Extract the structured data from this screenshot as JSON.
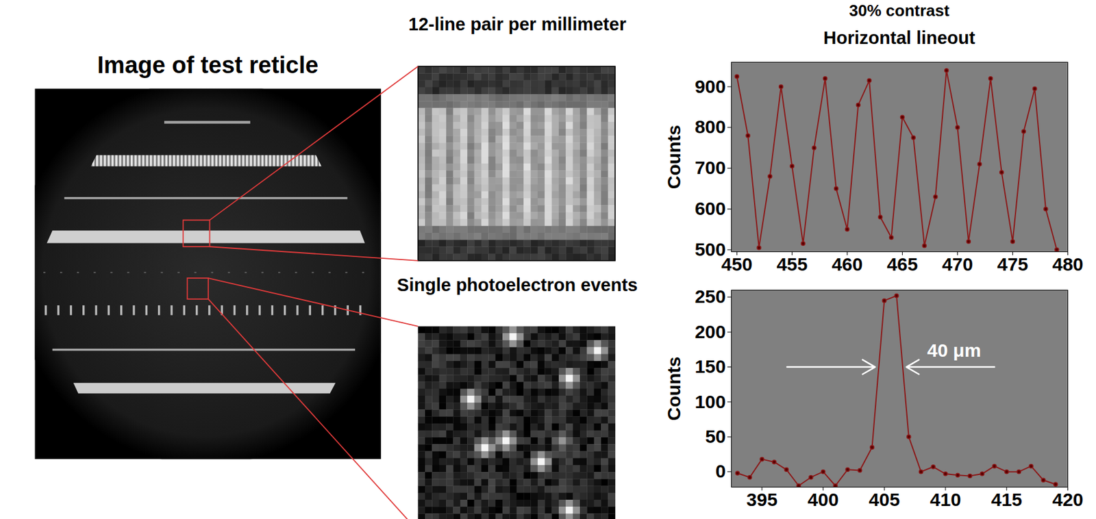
{
  "heading": "30% contrast",
  "images": [
    {
      "title": "Image of test reticle"
    },
    {
      "title": "12-line pair per millimeter"
    },
    {
      "title": "Single photoelectron events"
    }
  ],
  "chart_data": [
    {
      "type": "line",
      "title": "Horizontal lineout",
      "ylabel": "Counts",
      "x": [
        450,
        451,
        452,
        453,
        454,
        455,
        456,
        457,
        458,
        459,
        460,
        461,
        462,
        463,
        464,
        465,
        466,
        467,
        468,
        469,
        470,
        471,
        472,
        473,
        474,
        475,
        476,
        477,
        478,
        479
      ],
      "values": [
        925,
        780,
        505,
        680,
        900,
        705,
        515,
        750,
        920,
        650,
        550,
        855,
        915,
        580,
        530,
        825,
        775,
        510,
        630,
        940,
        800,
        520,
        710,
        920,
        690,
        520,
        790,
        895,
        600,
        500
      ],
      "xlim": [
        449.5,
        480
      ],
      "xticks": [
        450,
        455,
        460,
        465,
        470,
        475,
        480
      ],
      "ylim": [
        495,
        960
      ],
      "yticks": [
        500,
        600,
        700,
        800,
        900
      ],
      "color": "#8b1a1a",
      "marker": "circle"
    },
    {
      "type": "line",
      "ylabel": "Counts",
      "x": [
        393,
        394,
        395,
        396,
        397,
        398,
        399,
        400,
        401,
        402,
        403,
        404,
        405,
        406,
        407,
        408,
        409,
        410,
        411,
        412,
        413,
        414,
        415,
        416,
        417,
        418,
        419
      ],
      "values": [
        -2,
        -8,
        18,
        14,
        3,
        -20,
        -8,
        0,
        -20,
        3,
        2,
        35,
        245,
        252,
        50,
        0,
        7,
        -3,
        -5,
        -6,
        -3,
        8,
        0,
        0,
        8,
        -12,
        -18
      ],
      "xlim": [
        392.5,
        420
      ],
      "xticks": [
        395,
        400,
        405,
        410,
        415,
        420
      ],
      "ylim": [
        -22,
        260
      ],
      "yticks": [
        0,
        50,
        100,
        150,
        200,
        250
      ],
      "color": "#8b1a1a",
      "marker": "circle",
      "annotation": {
        "text": "40 μm",
        "y": 150
      }
    }
  ]
}
